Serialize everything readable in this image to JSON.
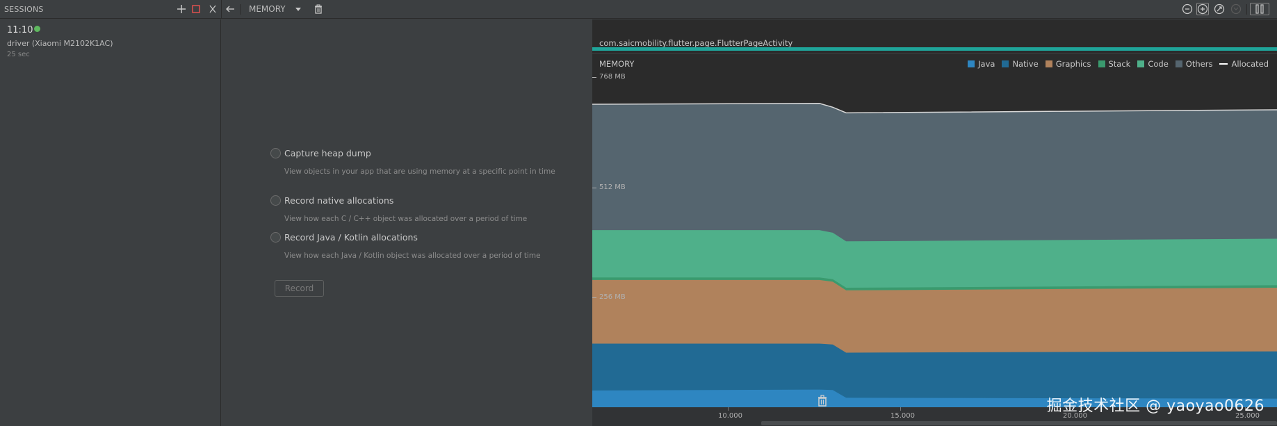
{
  "toolbar": {
    "sessions_title": "SESSIONS",
    "memory_label": "MEMORY"
  },
  "session": {
    "time": "11:10",
    "device": "driver (Xiaomi M2102K1AC)",
    "duration": "25 sec",
    "status_color": "#5fb85f"
  },
  "options": {
    "heap_dump": {
      "title": "Capture heap dump",
      "desc": "View objects in your app that are using memory at a specific point in time"
    },
    "native": {
      "title": "Record native allocations",
      "desc": "View how each C / C++ object was allocated over a period of time"
    },
    "java": {
      "title": "Record Java / Kotlin allocations",
      "desc": "View how each Java / Kotlin object was allocated over a period of time"
    },
    "record_label": "Record"
  },
  "chart_panel": {
    "activity": "com.saicmobility.flutter.page.FlutterPageActivity",
    "watermark": "掘金技术社区 @ yaoyao0626"
  },
  "chart_data": {
    "type": "area",
    "title": "MEMORY",
    "ylim": [
      0,
      768
    ],
    "yticks": [
      "768 MB",
      "512 MB",
      "256 MB"
    ],
    "xticks": [
      "10.000",
      "15.000",
      "20.000",
      "25.000"
    ],
    "xlim": [
      6.0,
      26.5
    ],
    "legend": [
      {
        "name": "Java",
        "color": "#2e86c1"
      },
      {
        "name": "Native",
        "color": "#216a94"
      },
      {
        "name": "Graphics",
        "color": "#b0825c"
      },
      {
        "name": "Stack",
        "color": "#3a9a6e"
      },
      {
        "name": "Code",
        "color": "#4fb08a"
      },
      {
        "name": "Others",
        "color": "#55656f"
      },
      {
        "name": "Allocated",
        "color": "#ffffff"
      }
    ],
    "x": [
      6.0,
      12.8,
      13.2,
      13.6,
      26.5
    ],
    "series": [
      {
        "name": "Java",
        "values": [
          39,
          41,
          40,
          22,
          20
        ]
      },
      {
        "name": "Native",
        "values": [
          148,
          148,
          146,
          127,
          130
        ]
      },
      {
        "name": "Graphics",
        "values": [
          296,
          296,
          292,
          272,
          278
        ]
      },
      {
        "name": "Stack",
        "values": [
          302,
          302,
          298,
          278,
          284
        ]
      },
      {
        "name": "Code",
        "values": [
          412,
          412,
          406,
          386,
          392
        ]
      },
      {
        "name": "Others",
        "values": [
          703,
          705,
          696,
          683,
          690
        ]
      }
    ],
    "allocated": [
      705,
      707,
      698,
      685,
      692
    ]
  }
}
